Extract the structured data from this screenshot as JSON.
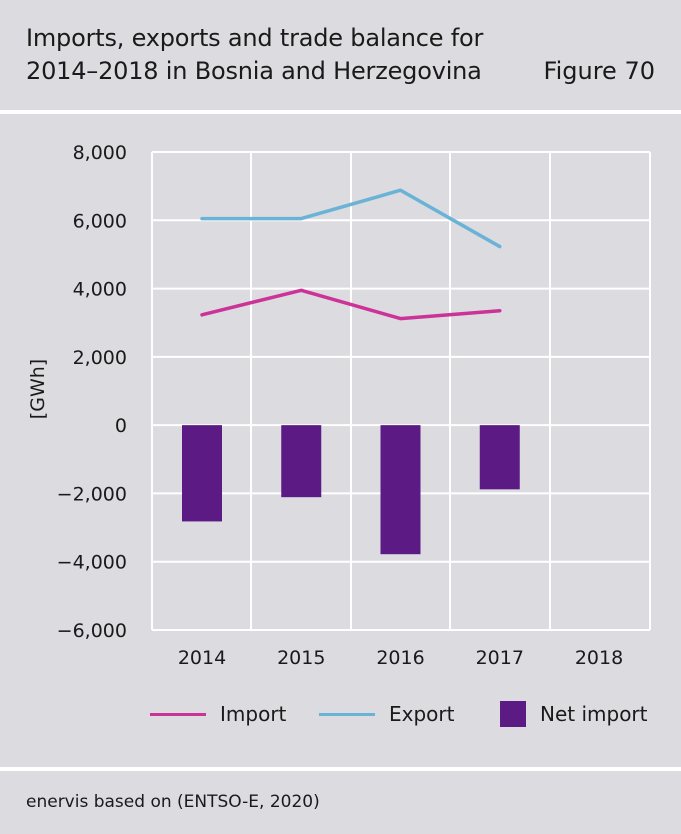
{
  "header": {
    "title_line1": "Imports, exports and trade balance for",
    "title_line2": "2014–2018 in Bosnia and Herzegovina",
    "figure_label": "Figure 70"
  },
  "source": "enervis based on (ENTSO-E, 2020)",
  "colors": {
    "import": "#cc3399",
    "export": "#6ab2d6",
    "net_import": "#5c1a85",
    "grid": "#ffffff",
    "background": "#dcdbe0"
  },
  "chart_data": {
    "type": "bar",
    "title": "Imports, exports and trade balance for 2014–2018 in Bosnia and Herzegovina",
    "ylabel": "[GWh]",
    "xlabel": "",
    "ylim": [
      -6000,
      8000
    ],
    "yticks": [
      8000,
      6000,
      4000,
      2000,
      0,
      -2000,
      -4000,
      -6000
    ],
    "ytick_labels": [
      "8,000",
      "6,000",
      "4,000",
      "2,000",
      "0",
      "−2,000",
      "−4,000",
      "−6,000"
    ],
    "categories": [
      "2014",
      "2015",
      "2016",
      "2017",
      "2018"
    ],
    "grid": true,
    "legend_position": "bottom",
    "series": [
      {
        "name": "Import",
        "type": "line",
        "color": "#cc3399",
        "values": [
          3230,
          3950,
          3120,
          3350,
          null
        ]
      },
      {
        "name": "Export",
        "type": "line",
        "color": "#6ab2d6",
        "values": [
          6050,
          6050,
          6880,
          5230,
          null
        ]
      },
      {
        "name": "Net import",
        "type": "bar",
        "color": "#5c1a85",
        "values": [
          -2820,
          -2110,
          -3780,
          -1880,
          null
        ]
      }
    ]
  }
}
